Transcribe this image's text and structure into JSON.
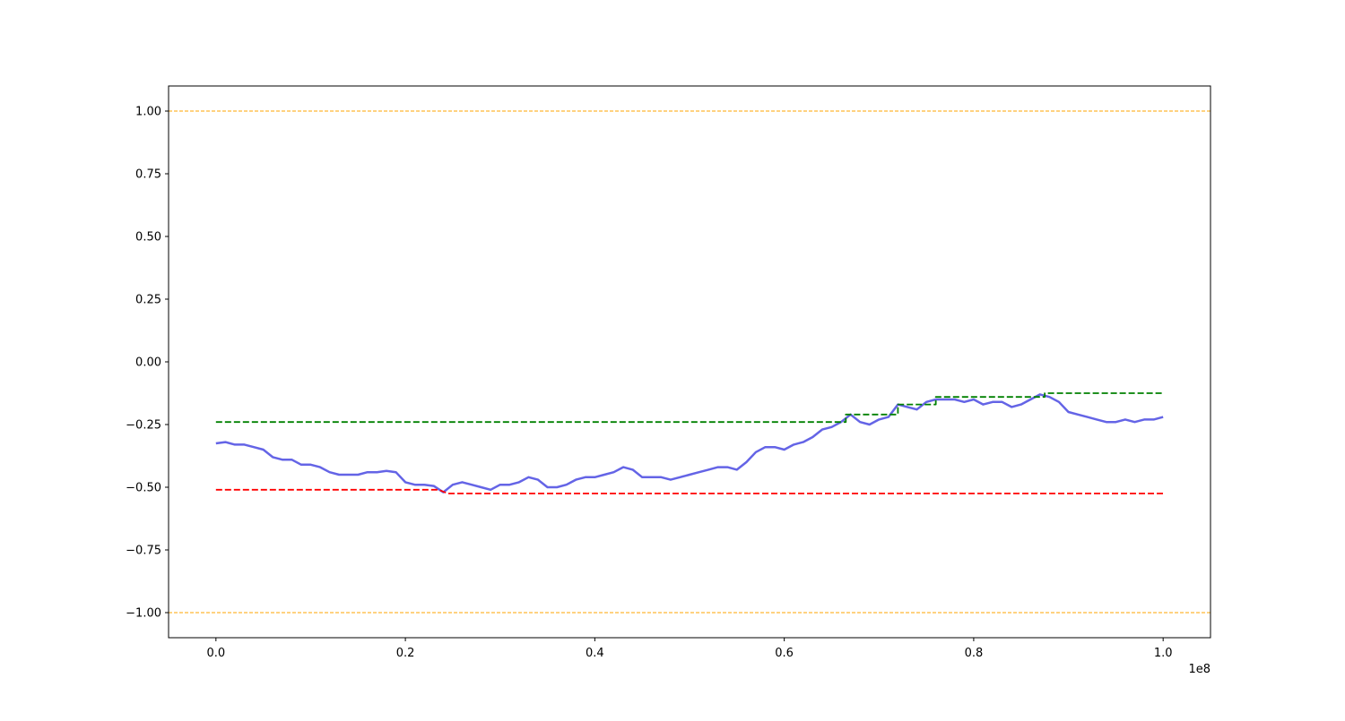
{
  "chart_data": {
    "type": "line",
    "title": "",
    "xlabel": "",
    "ylabel": "",
    "x_offset_text": "1e8",
    "xlim": [
      -0.05,
      1.05
    ],
    "ylim": [
      -1.1,
      1.1
    ],
    "xticks": [
      0.0,
      0.2,
      0.4,
      0.6,
      0.8,
      1.0
    ],
    "xtick_labels": [
      "0.0",
      "0.2",
      "0.4",
      "0.6",
      "0.8",
      "1.0"
    ],
    "yticks": [
      1.0,
      0.75,
      0.5,
      0.25,
      0.0,
      -0.25,
      -0.5,
      -0.75,
      -1.0
    ],
    "ytick_labels": [
      "1.00",
      "0.75",
      "0.50",
      "0.25",
      "0.00",
      "−0.25",
      "−0.50",
      "−0.75",
      "−1.00"
    ],
    "grid": false,
    "legend": "none",
    "hlines": [
      {
        "y": 1.0,
        "color": "#ffa500",
        "style": "dashed"
      },
      {
        "y": -1.0,
        "color": "#ffa500",
        "style": "dashed"
      }
    ],
    "series": [
      {
        "color": "#6464e6",
        "style": "solid",
        "x": [
          0.0,
          0.01,
          0.02,
          0.03,
          0.04,
          0.05,
          0.06,
          0.07,
          0.08,
          0.09,
          0.1,
          0.11,
          0.12,
          0.13,
          0.14,
          0.15,
          0.16,
          0.17,
          0.18,
          0.19,
          0.2,
          0.21,
          0.22,
          0.23,
          0.24,
          0.25,
          0.26,
          0.27,
          0.28,
          0.29,
          0.3,
          0.31,
          0.32,
          0.33,
          0.34,
          0.35,
          0.36,
          0.37,
          0.38,
          0.39,
          0.4,
          0.41,
          0.42,
          0.43,
          0.44,
          0.45,
          0.46,
          0.47,
          0.48,
          0.49,
          0.5,
          0.51,
          0.52,
          0.53,
          0.54,
          0.55,
          0.56,
          0.57,
          0.58,
          0.59,
          0.6,
          0.61,
          0.62,
          0.63,
          0.64,
          0.65,
          0.66,
          0.67,
          0.68,
          0.69,
          0.7,
          0.71,
          0.72,
          0.73,
          0.74,
          0.75,
          0.76,
          0.77,
          0.78,
          0.79,
          0.8,
          0.81,
          0.82,
          0.83,
          0.84,
          0.85,
          0.86,
          0.87,
          0.88,
          0.89,
          0.9,
          0.91,
          0.92,
          0.93,
          0.94,
          0.95,
          0.96,
          0.97,
          0.98,
          0.99,
          1.0
        ],
        "y": [
          -0.325,
          -0.32,
          -0.33,
          -0.33,
          -0.34,
          -0.35,
          -0.38,
          -0.39,
          -0.39,
          -0.41,
          -0.41,
          -0.42,
          -0.44,
          -0.45,
          -0.45,
          -0.45,
          -0.44,
          -0.44,
          -0.435,
          -0.44,
          -0.48,
          -0.49,
          -0.49,
          -0.495,
          -0.52,
          -0.49,
          -0.48,
          -0.49,
          -0.5,
          -0.51,
          -0.49,
          -0.49,
          -0.48,
          -0.46,
          -0.47,
          -0.5,
          -0.5,
          -0.49,
          -0.47,
          -0.46,
          -0.46,
          -0.45,
          -0.44,
          -0.42,
          -0.43,
          -0.46,
          -0.46,
          -0.46,
          -0.47,
          -0.46,
          -0.45,
          -0.44,
          -0.43,
          -0.42,
          -0.42,
          -0.43,
          -0.4,
          -0.36,
          -0.34,
          -0.34,
          -0.35,
          -0.33,
          -0.32,
          -0.3,
          -0.27,
          -0.26,
          -0.24,
          -0.21,
          -0.24,
          -0.25,
          -0.23,
          -0.22,
          -0.17,
          -0.18,
          -0.19,
          -0.16,
          -0.15,
          -0.15,
          -0.15,
          -0.16,
          -0.15,
          -0.17,
          -0.16,
          -0.16,
          -0.18,
          -0.17,
          -0.15,
          -0.13,
          -0.14,
          -0.16,
          -0.2,
          -0.21,
          -0.22,
          -0.23,
          -0.24,
          -0.24,
          -0.23,
          -0.24,
          -0.23,
          -0.23,
          -0.22
        ]
      },
      {
        "color": "#008000",
        "style": "dashed",
        "x": [
          0.0,
          0.665,
          0.665,
          0.72,
          0.72,
          0.76,
          0.76,
          0.875,
          0.875,
          1.0
        ],
        "y": [
          -0.24,
          -0.24,
          -0.21,
          -0.21,
          -0.17,
          -0.17,
          -0.14,
          -0.14,
          -0.125,
          -0.125
        ]
      },
      {
        "color": "#ff0000",
        "style": "dashed",
        "x": [
          0.0,
          0.235,
          0.245,
          1.0
        ],
        "y": [
          -0.51,
          -0.51,
          -0.525,
          -0.525
        ]
      }
    ]
  }
}
